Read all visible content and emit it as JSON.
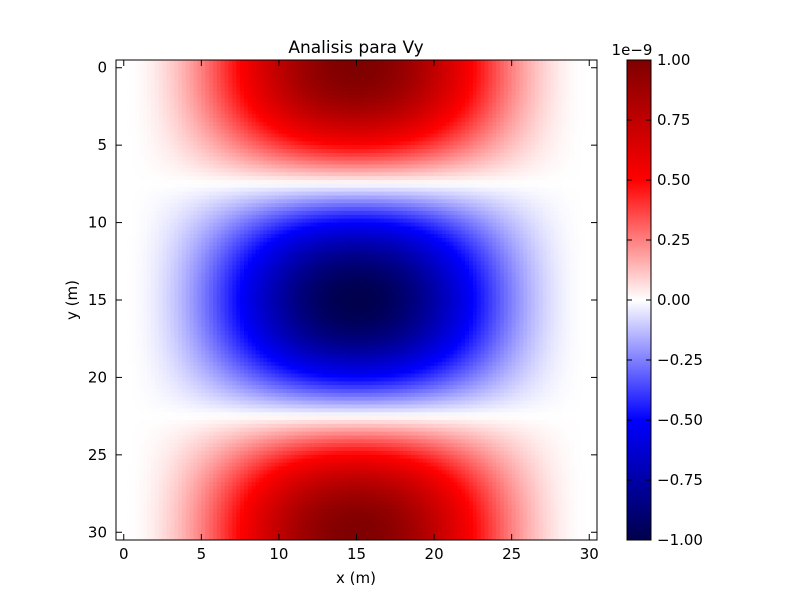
{
  "chart_data": {
    "type": "heatmap",
    "title": "Analisis para Vy",
    "xlabel": "x (m)",
    "ylabel": "y (m)",
    "xlim": [
      -0.5,
      30.5
    ],
    "ylim": [
      30.5,
      -0.5
    ],
    "x_ticks": [
      0,
      5,
      10,
      15,
      20,
      25,
      30
    ],
    "y_ticks": [
      0,
      5,
      10,
      15,
      20,
      25,
      30
    ],
    "grid": false,
    "colormap": "seismic",
    "colormap_stops": [
      "#00004c",
      "#0000ff",
      "#ffffff",
      "#ff0000",
      "#7f0000"
    ],
    "colorbar": {
      "min": -1.0,
      "max": 1.0,
      "offset_label": "1e−9",
      "tick_values": [
        -1.0,
        -0.75,
        -0.5,
        -0.25,
        0.0,
        0.25,
        0.5,
        0.75,
        1.0
      ],
      "tick_labels": [
        "−1.00",
        "−0.75",
        "−0.50",
        "−0.25",
        "0.00",
        "0.25",
        "0.50",
        "0.75",
        "1.00"
      ]
    },
    "field": {
      "description_of_pattern": "Vy = cos(2*pi*y/30) * sin(pi*x/30)^2, scaled to 1e-9",
      "nx": 31,
      "ny": 31,
      "peak_value": 1.0
    }
  }
}
